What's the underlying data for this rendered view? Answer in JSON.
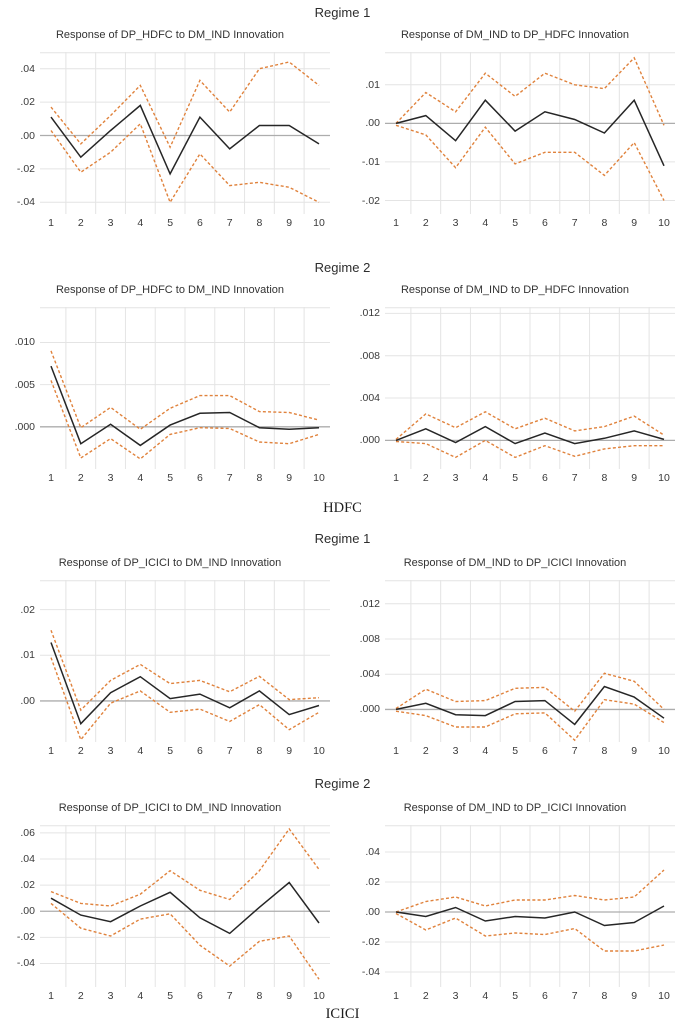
{
  "bank_labels": {
    "hdfc": "HDFC",
    "icici": "ICICI"
  },
  "sections": [
    {
      "title": "Regime 1"
    },
    {
      "title": "Regime 2"
    },
    {
      "title": "Regime 1"
    },
    {
      "title": "Regime 2"
    }
  ],
  "colors": {
    "response_line": "#262626",
    "band_line": "#E0823C",
    "grid": "#e4e4e4",
    "zero_line": "#adadad",
    "background": "#ffffff"
  },
  "chart_data": [
    {
      "type": "line",
      "title": "Response of DP_HDFC to DM_IND Innovation",
      "x": [
        1,
        2,
        3,
        4,
        5,
        6,
        7,
        8,
        9,
        10
      ],
      "series": [
        {
          "name": "response",
          "style": "solid",
          "values": [
            0.011,
            -0.013,
            0.003,
            0.018,
            -0.023,
            0.011,
            -0.008,
            0.006,
            0.006,
            -0.005
          ]
        },
        {
          "name": "upper_band",
          "style": "dashed",
          "values": [
            0.017,
            -0.005,
            0.012,
            0.03,
            -0.007,
            0.033,
            0.014,
            0.04,
            0.044,
            0.03
          ]
        },
        {
          "name": "lower_band",
          "style": "dashed",
          "values": [
            0.003,
            -0.022,
            -0.01,
            0.007,
            -0.04,
            -0.011,
            -0.03,
            -0.028,
            -0.031,
            -0.04
          ]
        }
      ],
      "ytick_labels": [
        ".04",
        ".02",
        ".00",
        "-.02",
        "-.04"
      ],
      "ytick_values": [
        0.04,
        0.02,
        0,
        -0.02,
        -0.04
      ],
      "ylim": [
        -0.047,
        0.05
      ],
      "xlabel": "",
      "ylabel": "",
      "grid": true,
      "legend": "none"
    },
    {
      "type": "line",
      "title": "Response of DM_IND to DP_HDFC Innovation",
      "x": [
        1,
        2,
        3,
        4,
        5,
        6,
        7,
        8,
        9,
        10
      ],
      "series": [
        {
          "name": "response",
          "style": "solid",
          "values": [
            0.0,
            0.002,
            -0.0045,
            0.006,
            -0.002,
            0.003,
            0.001,
            -0.0025,
            0.006,
            -0.011
          ]
        },
        {
          "name": "upper_band",
          "style": "dashed",
          "values": [
            0.0,
            0.008,
            0.003,
            0.013,
            0.007,
            0.013,
            0.01,
            0.009,
            0.017,
            -0.0005
          ]
        },
        {
          "name": "lower_band",
          "style": "dashed",
          "values": [
            -0.0005,
            -0.003,
            -0.0115,
            -0.001,
            -0.0105,
            -0.0075,
            -0.0075,
            -0.0135,
            -0.005,
            -0.02
          ]
        }
      ],
      "ytick_labels": [
        ".01",
        ".00",
        "-.01",
        "-.02"
      ],
      "ytick_values": [
        0.01,
        0,
        -0.01,
        -0.02
      ],
      "ylim": [
        -0.0235,
        0.0185
      ],
      "xlabel": "",
      "ylabel": "",
      "grid": true,
      "legend": "none"
    },
    {
      "type": "line",
      "title": "Response of DP_HDFC to DM_IND Innovation",
      "x": [
        1,
        2,
        3,
        4,
        5,
        6,
        7,
        8,
        9,
        10
      ],
      "series": [
        {
          "name": "response",
          "style": "solid",
          "values": [
            0.0072,
            -0.002,
            0.0003,
            -0.0022,
            0.0002,
            0.0016,
            0.0017,
            -0.0001,
            -0.0003,
            -0.0001
          ]
        },
        {
          "name": "upper_band",
          "style": "dashed",
          "values": [
            0.009,
            -0.0001,
            0.0023,
            -0.0003,
            0.0022,
            0.0037,
            0.0037,
            0.0018,
            0.0017,
            0.0008
          ]
        },
        {
          "name": "lower_band",
          "style": "dashed",
          "values": [
            0.0055,
            -0.0037,
            -0.0014,
            -0.0038,
            -0.0009,
            -0.0001,
            -0.0002,
            -0.0018,
            -0.002,
            -0.0009
          ]
        }
      ],
      "ytick_labels": [
        ".010",
        ".005",
        ".000"
      ],
      "ytick_values": [
        0.01,
        0.005,
        0
      ],
      "ylim": [
        -0.005,
        0.0142
      ],
      "xlabel": "",
      "ylabel": "",
      "grid": true,
      "legend": "none"
    },
    {
      "type": "line",
      "title": "Response of DM_IND to DP_HDFC Innovation",
      "x": [
        1,
        2,
        3,
        4,
        5,
        6,
        7,
        8,
        9,
        10
      ],
      "series": [
        {
          "name": "response",
          "style": "solid",
          "values": [
            0.0,
            0.0011,
            -0.0002,
            0.0013,
            -0.0003,
            0.0007,
            -0.0003,
            0.0002,
            0.0009,
            0.0001
          ]
        },
        {
          "name": "upper_band",
          "style": "dashed",
          "values": [
            0.0001,
            0.0025,
            0.0012,
            0.0027,
            0.0011,
            0.0021,
            0.0009,
            0.0013,
            0.0023,
            0.0005
          ]
        },
        {
          "name": "lower_band",
          "style": "dashed",
          "values": [
            -0.0001,
            -0.0003,
            -0.0016,
            0.0,
            -0.0016,
            -0.0005,
            -0.0015,
            -0.0008,
            -0.0005,
            -0.0005
          ]
        }
      ],
      "ytick_labels": [
        ".012",
        ".008",
        ".004",
        ".000"
      ],
      "ytick_values": [
        0.012,
        0.008,
        0.004,
        0
      ],
      "ylim": [
        -0.0027,
        0.0126
      ],
      "xlabel": "",
      "ylabel": "",
      "grid": true,
      "legend": "none"
    },
    {
      "type": "line",
      "title": "Response of DP_ICICI to DM_IND Innovation",
      "x": [
        1,
        2,
        3,
        4,
        5,
        6,
        7,
        8,
        9,
        10
      ],
      "series": [
        {
          "name": "response",
          "style": "solid",
          "values": [
            0.0128,
            -0.005,
            0.0018,
            0.0053,
            0.0005,
            0.0015,
            -0.0015,
            0.0022,
            -0.003,
            -0.001
          ]
        },
        {
          "name": "upper_band",
          "style": "dashed",
          "values": [
            0.0155,
            -0.002,
            0.0045,
            0.008,
            0.0038,
            0.0045,
            0.002,
            0.0054,
            0.0003,
            0.0007
          ]
        },
        {
          "name": "lower_band",
          "style": "dashed",
          "values": [
            0.0095,
            -0.0085,
            -0.0005,
            0.0022,
            -0.0025,
            -0.0018,
            -0.0045,
            -0.0008,
            -0.0063,
            -0.0025
          ]
        }
      ],
      "ytick_labels": [
        ".02",
        ".01",
        ".00"
      ],
      "ytick_values": [
        0.02,
        0.01,
        0
      ],
      "ylim": [
        -0.009,
        0.0265
      ],
      "xlabel": "",
      "ylabel": "",
      "grid": true,
      "legend": "none"
    },
    {
      "type": "line",
      "title": "Response of DM_IND to DP_ICICI Innovation",
      "x": [
        1,
        2,
        3,
        4,
        5,
        6,
        7,
        8,
        9,
        10
      ],
      "series": [
        {
          "name": "response",
          "style": "solid",
          "values": [
            0.0,
            0.0007,
            -0.0006,
            -0.0007,
            0.0009,
            0.001,
            -0.0017,
            0.0026,
            0.0014,
            -0.001
          ]
        },
        {
          "name": "upper_band",
          "style": "dashed",
          "values": [
            0.0001,
            0.0023,
            0.0009,
            0.001,
            0.0024,
            0.0025,
            -0.0002,
            0.0041,
            0.0032,
            0.0
          ]
        },
        {
          "name": "lower_band",
          "style": "dashed",
          "values": [
            -0.0002,
            -0.0007,
            -0.002,
            -0.002,
            -0.0005,
            -0.0004,
            -0.0035,
            0.0011,
            0.0006,
            -0.0015
          ]
        }
      ],
      "ytick_labels": [
        ".012",
        ".008",
        ".004",
        ".000"
      ],
      "ytick_values": [
        0.012,
        0.008,
        0.004,
        0
      ],
      "ylim": [
        -0.0037,
        0.0147
      ],
      "xlabel": "",
      "ylabel": "",
      "grid": true,
      "legend": "none"
    },
    {
      "type": "line",
      "title": "Response of DP_ICICI to DM_IND Innovation",
      "x": [
        1,
        2,
        3,
        4,
        5,
        6,
        7,
        8,
        9,
        10
      ],
      "series": [
        {
          "name": "response",
          "style": "solid",
          "values": [
            0.01,
            -0.003,
            -0.008,
            0.004,
            0.0145,
            -0.005,
            -0.017,
            0.003,
            0.022,
            -0.009
          ]
        },
        {
          "name": "upper_band",
          "style": "dashed",
          "values": [
            0.015,
            0.006,
            0.004,
            0.013,
            0.031,
            0.016,
            0.009,
            0.031,
            0.063,
            0.032
          ]
        },
        {
          "name": "lower_band",
          "style": "dashed",
          "values": [
            0.006,
            -0.013,
            -0.019,
            -0.006,
            -0.002,
            -0.026,
            -0.042,
            -0.023,
            -0.019,
            -0.052
          ]
        }
      ],
      "ytick_labels": [
        ".06",
        ".04",
        ".02",
        ".00",
        "-.02",
        "-.04"
      ],
      "ytick_values": [
        0.06,
        0.04,
        0.02,
        0,
        -0.02,
        -0.04
      ],
      "ylim": [
        -0.058,
        0.066
      ],
      "xlabel": "",
      "ylabel": "",
      "grid": true,
      "legend": "none"
    },
    {
      "type": "line",
      "title": "Response of DM_IND to DP_ICICI Innovation",
      "x": [
        1,
        2,
        3,
        4,
        5,
        6,
        7,
        8,
        9,
        10
      ],
      "series": [
        {
          "name": "response",
          "style": "solid",
          "values": [
            0.0,
            -0.003,
            0.003,
            -0.006,
            -0.003,
            -0.004,
            0.0,
            -0.009,
            -0.007,
            0.004
          ]
        },
        {
          "name": "upper_band",
          "style": "dashed",
          "values": [
            0.0,
            0.007,
            0.01,
            0.004,
            0.008,
            0.008,
            0.011,
            0.008,
            0.01,
            0.028
          ]
        },
        {
          "name": "lower_band",
          "style": "dashed",
          "values": [
            -0.001,
            -0.012,
            -0.004,
            -0.016,
            -0.014,
            -0.015,
            -0.011,
            -0.026,
            -0.026,
            -0.022
          ]
        }
      ],
      "ytick_labels": [
        ".04",
        ".02",
        ".00",
        "-.02",
        "-.04"
      ],
      "ytick_values": [
        0.04,
        0.02,
        0,
        -0.02,
        -0.04
      ],
      "ylim": [
        -0.05,
        0.058
      ],
      "xlabel": "",
      "ylabel": "",
      "grid": true,
      "legend": "none"
    }
  ]
}
